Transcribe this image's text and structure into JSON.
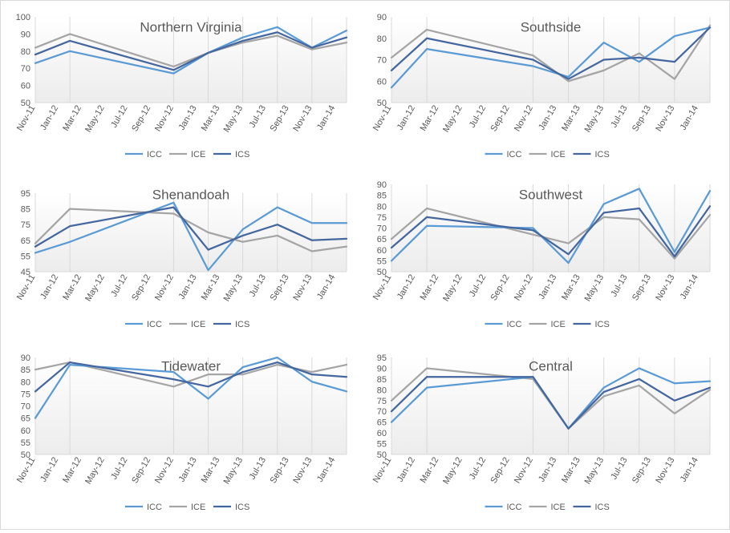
{
  "colors": {
    "ICC": "#5b9bd5",
    "ICE": "#a5a5a5",
    "ICS": "#44679f",
    "axis": "#595959",
    "grid": "#d9d9d9"
  },
  "chart_data": [
    {
      "type": "line",
      "title": "Northern Virginia",
      "x_tick_labels": [
        "Nov-11",
        "Jan-12",
        "Mar-12",
        "May-12",
        "Jul-12",
        "Sep-12",
        "Nov-12",
        "Jan-13",
        "Mar-13",
        "May-13",
        "Jul-13",
        "Sep-13",
        "Nov-13",
        "Jan-14"
      ],
      "x": [
        "Nov-11",
        "Feb-12",
        "Nov-12",
        "Feb-13",
        "May-13",
        "Aug-13",
        "Nov-13",
        "Feb-14"
      ],
      "ylim": [
        50,
        100
      ],
      "y_ticks": [
        50,
        60,
        70,
        80,
        90,
        100
      ],
      "legend_position": "bottom",
      "series": [
        {
          "name": "ICC",
          "values": [
            73,
            80,
            67,
            79,
            88,
            94,
            82,
            92
          ]
        },
        {
          "name": "ICE",
          "values": [
            82,
            90,
            71,
            79,
            85,
            89,
            81,
            85
          ]
        },
        {
          "name": "ICS",
          "values": [
            78,
            86,
            69,
            79,
            86,
            91,
            82,
            88
          ]
        }
      ]
    },
    {
      "type": "line",
      "title": "Southside",
      "x_tick_labels": [
        "Nov-11",
        "Jan-12",
        "Mar-12",
        "May-12",
        "Jul-12",
        "Sep-12",
        "Nov-12",
        "Jan-13",
        "Mar-13",
        "May-13",
        "Jul-13",
        "Sep-13",
        "Nov-13",
        "Jan-14"
      ],
      "x": [
        "Nov-11",
        "Feb-12",
        "Nov-12",
        "Feb-13",
        "May-13",
        "Aug-13",
        "Nov-13",
        "Feb-14"
      ],
      "ylim": [
        50,
        90
      ],
      "y_ticks": [
        50,
        60,
        70,
        80,
        90
      ],
      "legend_position": "bottom",
      "series": [
        {
          "name": "ICC",
          "values": [
            57,
            75,
            67,
            62,
            78,
            69,
            81,
            85
          ]
        },
        {
          "name": "ICE",
          "values": [
            71,
            84,
            72,
            60,
            65,
            73,
            61,
            86
          ]
        },
        {
          "name": "ICS",
          "values": [
            65,
            80,
            70,
            61,
            70,
            71,
            69,
            85
          ]
        }
      ]
    },
    {
      "type": "line",
      "title": "Shenandoah",
      "x_tick_labels": [
        "Nov-11",
        "Jan-12",
        "Mar-12",
        "May-12",
        "Jul-12",
        "Sep-12",
        "Nov-12",
        "Jan-13",
        "Mar-13",
        "May-13",
        "Jul-13",
        "Sep-13",
        "Nov-13",
        "Jan-14"
      ],
      "x": [
        "Nov-11",
        "Feb-12",
        "Nov-12",
        "Feb-13",
        "May-13",
        "Aug-13",
        "Nov-13",
        "Feb-14"
      ],
      "ylim": [
        45,
        95
      ],
      "y_ticks": [
        45,
        55,
        65,
        75,
        85,
        95
      ],
      "legend_position": "bottom",
      "series": [
        {
          "name": "ICC",
          "values": [
            57,
            64,
            89,
            46,
            72,
            86,
            76,
            76
          ]
        },
        {
          "name": "ICE",
          "values": [
            63,
            85,
            82,
            70,
            64,
            68,
            58,
            61
          ]
        },
        {
          "name": "ICS",
          "values": [
            61,
            74,
            86,
            59,
            68,
            75,
            65,
            66
          ]
        }
      ]
    },
    {
      "type": "line",
      "title": "Southwest",
      "x_tick_labels": [
        "Nov-11",
        "Jan-12",
        "Mar-12",
        "May-12",
        "Jul-12",
        "Sep-12",
        "Nov-12",
        "Jan-13",
        "Mar-13",
        "May-13",
        "Jul-13",
        "Sep-13",
        "Nov-13",
        "Jan-14"
      ],
      "x": [
        "Nov-11",
        "Feb-12",
        "Nov-12",
        "Feb-13",
        "May-13",
        "Aug-13",
        "Nov-13",
        "Feb-14"
      ],
      "ylim": [
        50,
        90
      ],
      "y_ticks": [
        50,
        55,
        60,
        65,
        70,
        75,
        80,
        85,
        90
      ],
      "legend_position": "bottom",
      "series": [
        {
          "name": "ICC",
          "values": [
            55,
            71,
            70,
            54,
            81,
            88,
            59,
            87
          ]
        },
        {
          "name": "ICE",
          "values": [
            65,
            79,
            67,
            63,
            75,
            74,
            56,
            76
          ]
        },
        {
          "name": "ICS",
          "values": [
            61,
            75,
            69,
            58,
            77,
            79,
            57,
            80
          ]
        }
      ]
    },
    {
      "type": "line",
      "title": "Tidewater",
      "x_tick_labels": [
        "Nov-11",
        "Jan-12",
        "Mar-12",
        "May-12",
        "Jul-12",
        "Sep-12",
        "Nov-12",
        "Jan-13",
        "Mar-13",
        "May-13",
        "Jul-13",
        "Sep-13",
        "Nov-13",
        "Jan-14"
      ],
      "x": [
        "Nov-11",
        "Feb-12",
        "Nov-12",
        "Feb-13",
        "May-13",
        "Aug-13",
        "Nov-13",
        "Feb-14"
      ],
      "ylim": [
        50,
        90
      ],
      "y_ticks": [
        50,
        55,
        60,
        65,
        70,
        75,
        80,
        85,
        90
      ],
      "legend_position": "bottom",
      "series": [
        {
          "name": "ICC",
          "values": [
            65,
            87,
            84,
            73,
            86,
            90,
            80,
            76
          ]
        },
        {
          "name": "ICE",
          "values": [
            85,
            88,
            78,
            83,
            83,
            87,
            84,
            87
          ]
        },
        {
          "name": "ICS",
          "values": [
            76,
            88,
            81,
            78,
            84,
            88,
            83,
            82
          ]
        }
      ]
    },
    {
      "type": "line",
      "title": "Central",
      "x_tick_labels": [
        "Nov-11",
        "Jan-12",
        "Mar-12",
        "May-12",
        "Jul-12",
        "Sep-12",
        "Nov-12",
        "Jan-13",
        "Mar-13",
        "May-13",
        "Jul-13",
        "Sep-13",
        "Nov-13",
        "Jan-14"
      ],
      "x": [
        "Nov-11",
        "Feb-12",
        "Nov-12",
        "Feb-13",
        "May-13",
        "Aug-13",
        "Nov-13",
        "Feb-14"
      ],
      "ylim": [
        50,
        95
      ],
      "y_ticks": [
        50,
        55,
        60,
        65,
        70,
        75,
        80,
        85,
        90,
        95
      ],
      "legend_position": "bottom",
      "series": [
        {
          "name": "ICC",
          "values": [
            65,
            81,
            86,
            62,
            81,
            90,
            83,
            84
          ]
        },
        {
          "name": "ICE",
          "values": [
            75,
            90,
            85,
            62,
            77,
            82,
            69,
            80
          ]
        },
        {
          "name": "ICS",
          "values": [
            70,
            86,
            86,
            62,
            79,
            85,
            75,
            81
          ]
        }
      ]
    }
  ]
}
